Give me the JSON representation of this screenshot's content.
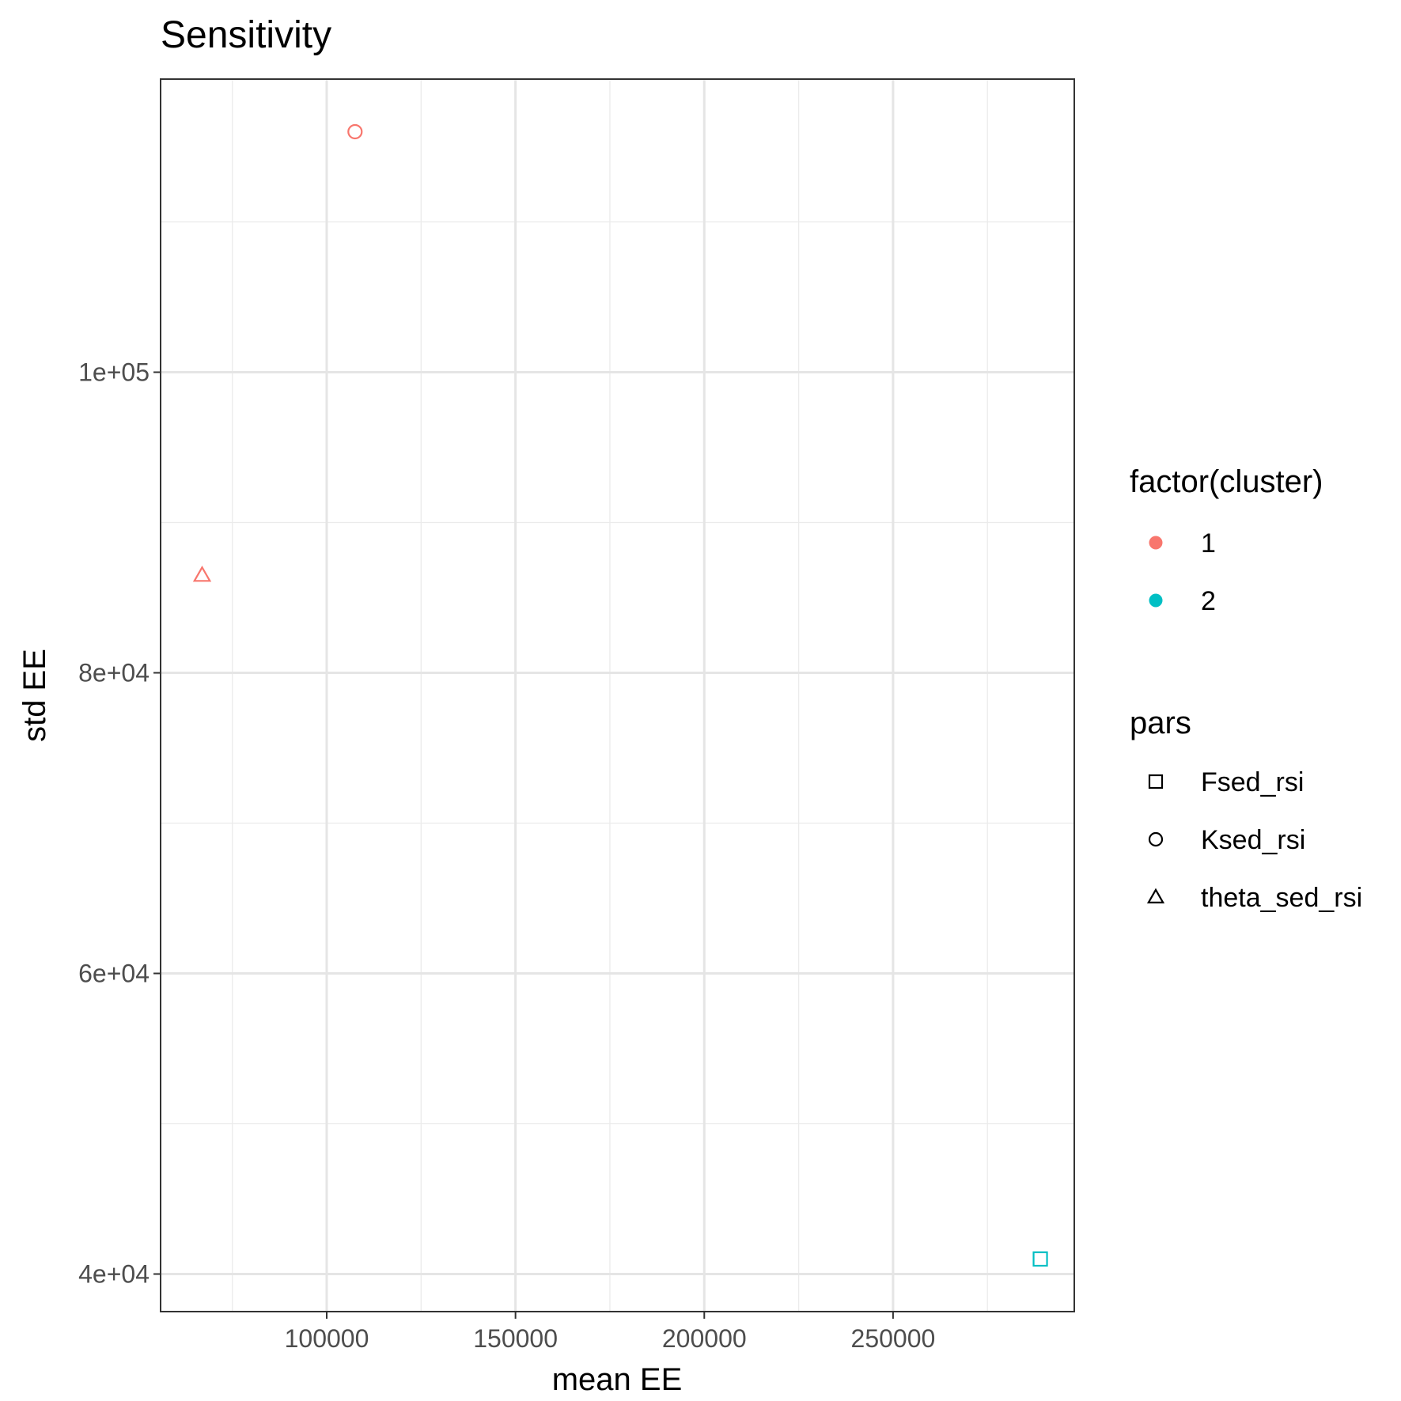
{
  "chart_data": {
    "type": "scatter",
    "title": "Sensitivity",
    "xlabel": "mean EE",
    "ylabel": "std EE",
    "xlim": [
      56000,
      298000
    ],
    "ylim": [
      37500,
      119500
    ],
    "x_ticks": [
      {
        "value": 100000,
        "label": "100000"
      },
      {
        "value": 150000,
        "label": "150000"
      },
      {
        "value": 200000,
        "label": "200000"
      },
      {
        "value": 250000,
        "label": "250000"
      }
    ],
    "y_ticks": [
      {
        "value": 40000,
        "label": "4e+04"
      },
      {
        "value": 60000,
        "label": "6e+04"
      },
      {
        "value": 80000,
        "label": "8e+04"
      },
      {
        "value": 100000,
        "label": "1e+05"
      }
    ],
    "grid": true,
    "points": [
      {
        "pars": "Ksed_rsi",
        "cluster": "1",
        "x": 107500,
        "y": 116000
      },
      {
        "pars": "theta_sed_rsi",
        "cluster": "1",
        "x": 67000,
        "y": 86500
      },
      {
        "pars": "Fsed_rsi",
        "cluster": "2",
        "x": 289000,
        "y": 41000
      }
    ],
    "legend": {
      "placement": "right",
      "color": {
        "title": "factor(cluster)",
        "entries": [
          {
            "label": "1",
            "color": "#F8766D"
          },
          {
            "label": "2",
            "color": "#00BFC4"
          }
        ]
      },
      "shape": {
        "title": "pars",
        "entries": [
          {
            "label": "Fsed_rsi",
            "shape": "square"
          },
          {
            "label": "Ksed_rsi",
            "shape": "circle"
          },
          {
            "label": "theta_sed_rsi",
            "shape": "triangle"
          }
        ]
      }
    }
  }
}
